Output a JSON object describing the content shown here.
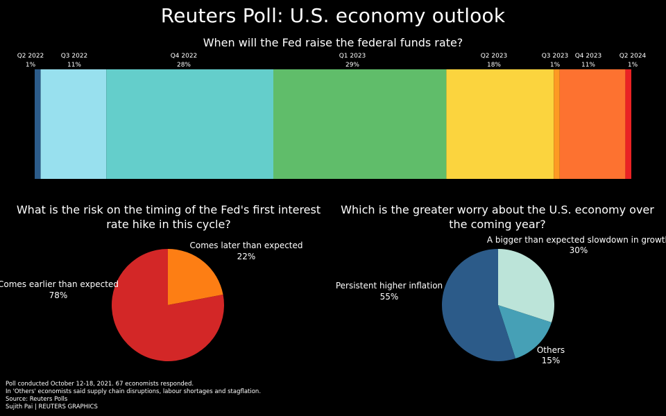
{
  "title": "Reuters Poll: U.S. economy outlook",
  "colors": {
    "background": "#000000",
    "text": "#ffffff"
  },
  "chart_data": [
    {
      "type": "bar",
      "orientation": "horizontal-stacked",
      "title": "When will the Fed raise the federal funds rate?",
      "categories": [
        "Q2 2022",
        "Q3 2022",
        "Q4 2022",
        "Q1 2023",
        "Q2 2023",
        "Q3 2023",
        "Q4 2023",
        "Q2 2024"
      ],
      "labels": [
        "1%",
        "11%",
        "28%",
        "29%",
        "18%",
        "1%",
        "11%",
        "1%"
      ],
      "values": [
        1,
        11,
        28,
        29,
        18,
        1,
        11,
        1
      ],
      "colors": [
        "#2c5c8a",
        "#98e0ee",
        "#64cecb",
        "#60bd6a",
        "#fbd43e",
        "#fd9a23",
        "#fd7230",
        "#ea2224"
      ],
      "xlabel": "",
      "ylabel": ""
    },
    {
      "type": "pie",
      "title": "What is the risk on the timing of the Fed's first interest rate hike in this cycle?",
      "slices": [
        {
          "label": "Comes later than expected",
          "pct": "22%",
          "value": 22,
          "color": "#fd7e14"
        },
        {
          "label": "Comes earlier than expected",
          "pct": "78%",
          "value": 78,
          "color": "#d32727"
        }
      ]
    },
    {
      "type": "pie",
      "title": "Which is the greater worry about the U.S. economy over the coming year?",
      "slices": [
        {
          "label": "A bigger than expected slowdown in growth",
          "pct": "30%",
          "value": 30,
          "color": "#bce4d9"
        },
        {
          "label": "Others",
          "pct": "15%",
          "value": 15,
          "color": "#46a0b6"
        },
        {
          "label": "Persistent higher inflation",
          "pct": "55%",
          "value": 55,
          "color": "#2c5b89"
        }
      ]
    }
  ],
  "footer": {
    "line1": "Poll conducted October 12-18, 2021. 67 economists responded.",
    "line2": "In 'Others' economists said supply chain disruptions, labour shortages and stagflation.",
    "line3": "Source: Reuters Polls",
    "line4": "Sujith Pai  | REUTERS GRAPHICS"
  }
}
